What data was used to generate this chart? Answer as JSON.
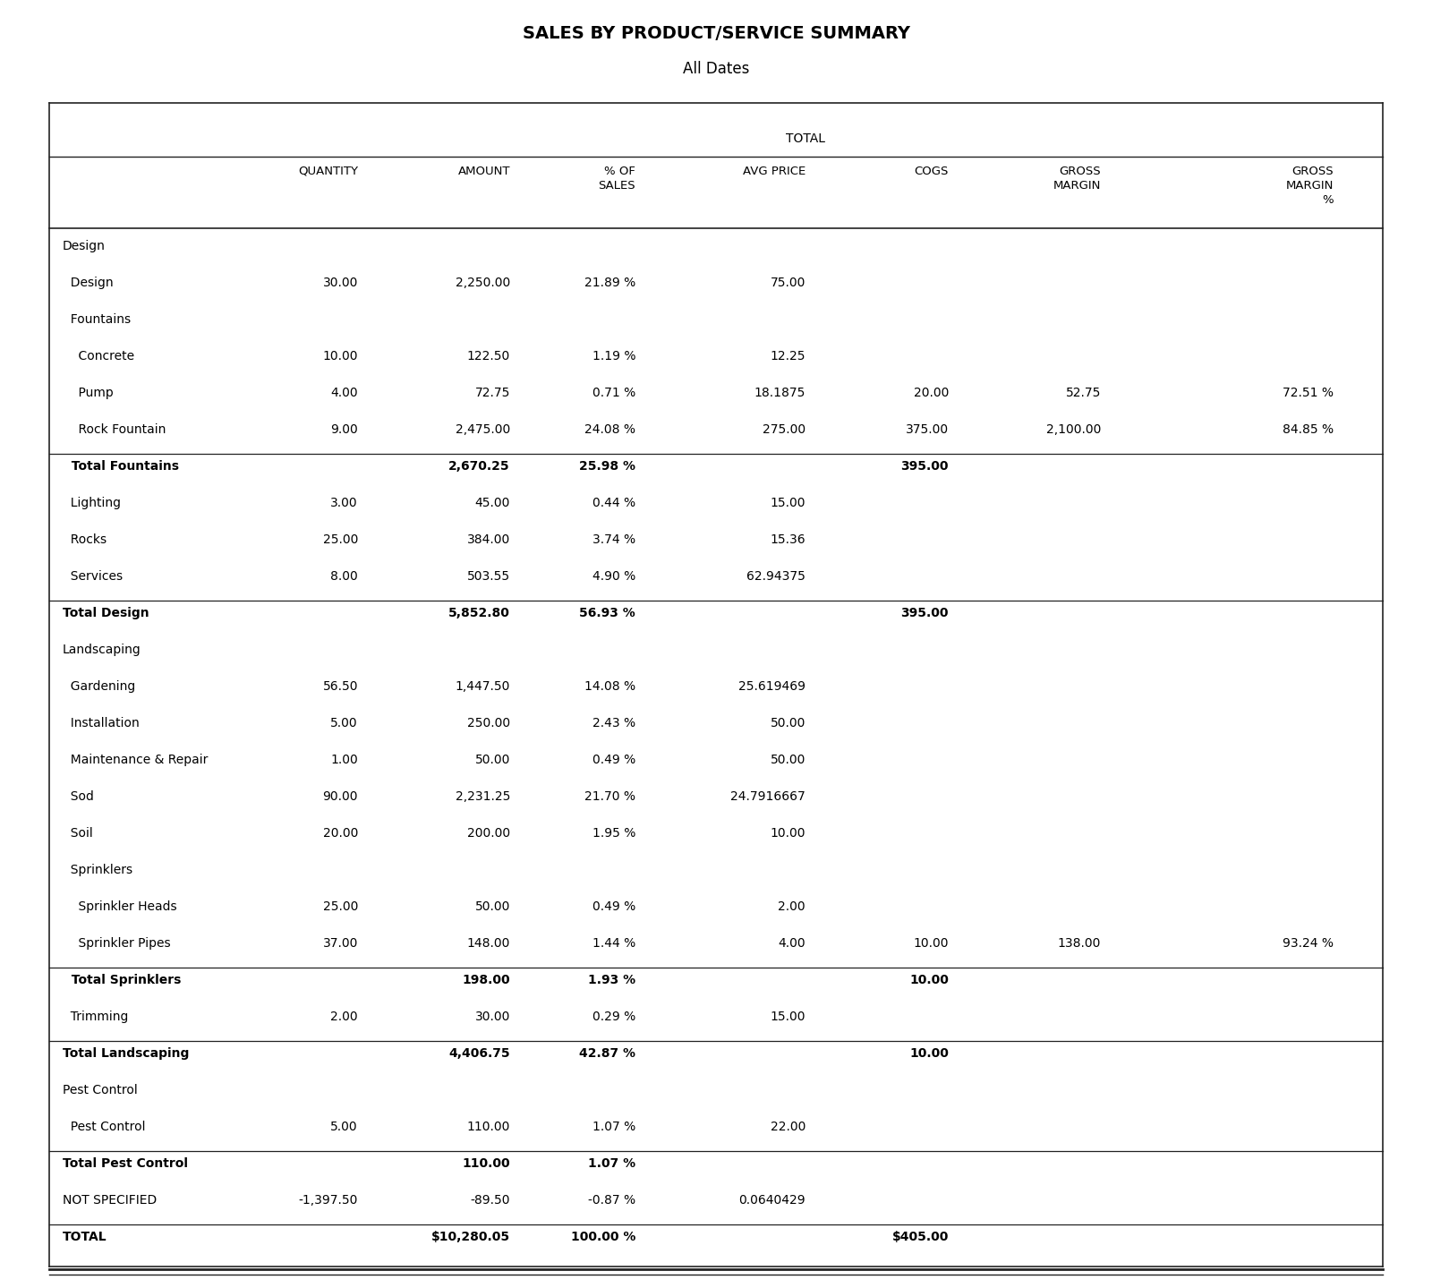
{
  "title": "SALES BY PRODUCT/SERVICE SUMMARY",
  "subtitle": "All Dates",
  "total_label": "TOTAL",
  "col_headers": [
    "",
    "QUANTITY",
    "AMOUNT",
    "% OF\nSALES",
    "AVG PRICE",
    "COGS",
    "GROSS\nMARGIN",
    "GROSS\nMARGIN\n%"
  ],
  "rows": [
    {
      "label": "Design",
      "indent": 0,
      "bold": false,
      "is_category": true,
      "qty": "",
      "amount": "",
      "pct": "",
      "avg": "",
      "cogs": "",
      "gm": "",
      "gm_pct": "",
      "has_top_line": false
    },
    {
      "label": "  Design",
      "indent": 0,
      "bold": false,
      "is_category": false,
      "qty": "30.00",
      "amount": "2,250.00",
      "pct": "21.89 %",
      "avg": "75.00",
      "cogs": "",
      "gm": "",
      "gm_pct": "",
      "has_top_line": false
    },
    {
      "label": "  Fountains",
      "indent": 0,
      "bold": false,
      "is_category": true,
      "qty": "",
      "amount": "",
      "pct": "",
      "avg": "",
      "cogs": "",
      "gm": "",
      "gm_pct": "",
      "has_top_line": false
    },
    {
      "label": "    Concrete",
      "indent": 0,
      "bold": false,
      "is_category": false,
      "qty": "10.00",
      "amount": "122.50",
      "pct": "1.19 %",
      "avg": "12.25",
      "cogs": "",
      "gm": "",
      "gm_pct": "",
      "has_top_line": false
    },
    {
      "label": "    Pump",
      "indent": 0,
      "bold": false,
      "is_category": false,
      "qty": "4.00",
      "amount": "72.75",
      "pct": "0.71 %",
      "avg": "18.1875",
      "cogs": "20.00",
      "gm": "52.75",
      "gm_pct": "72.51 %",
      "has_top_line": false
    },
    {
      "label": "    Rock Fountain",
      "indent": 0,
      "bold": false,
      "is_category": false,
      "qty": "9.00",
      "amount": "2,475.00",
      "pct": "24.08 %",
      "avg": "275.00",
      "cogs": "375.00",
      "gm": "2,100.00",
      "gm_pct": "84.85 %",
      "has_top_line": false
    },
    {
      "label": "  Total Fountains",
      "indent": 0,
      "bold": true,
      "is_category": false,
      "qty": "",
      "amount": "2,670.25",
      "pct": "25.98 %",
      "avg": "",
      "cogs": "395.00",
      "gm": "",
      "gm_pct": "",
      "has_top_line": true
    },
    {
      "label": "  Lighting",
      "indent": 0,
      "bold": false,
      "is_category": false,
      "qty": "3.00",
      "amount": "45.00",
      "pct": "0.44 %",
      "avg": "15.00",
      "cogs": "",
      "gm": "",
      "gm_pct": "",
      "has_top_line": false
    },
    {
      "label": "  Rocks",
      "indent": 0,
      "bold": false,
      "is_category": false,
      "qty": "25.00",
      "amount": "384.00",
      "pct": "3.74 %",
      "avg": "15.36",
      "cogs": "",
      "gm": "",
      "gm_pct": "",
      "has_top_line": false
    },
    {
      "label": "  Services",
      "indent": 0,
      "bold": false,
      "is_category": false,
      "qty": "8.00",
      "amount": "503.55",
      "pct": "4.90 %",
      "avg": "62.94375",
      "cogs": "",
      "gm": "",
      "gm_pct": "",
      "has_top_line": false
    },
    {
      "label": "Total Design",
      "indent": 0,
      "bold": true,
      "is_category": false,
      "qty": "",
      "amount": "5,852.80",
      "pct": "56.93 %",
      "avg": "",
      "cogs": "395.00",
      "gm": "",
      "gm_pct": "",
      "has_top_line": true
    },
    {
      "label": "Landscaping",
      "indent": 0,
      "bold": false,
      "is_category": true,
      "qty": "",
      "amount": "",
      "pct": "",
      "avg": "",
      "cogs": "",
      "gm": "",
      "gm_pct": "",
      "has_top_line": false
    },
    {
      "label": "  Gardening",
      "indent": 0,
      "bold": false,
      "is_category": false,
      "qty": "56.50",
      "amount": "1,447.50",
      "pct": "14.08 %",
      "avg": "25.619469",
      "cogs": "",
      "gm": "",
      "gm_pct": "",
      "has_top_line": false
    },
    {
      "label": "  Installation",
      "indent": 0,
      "bold": false,
      "is_category": false,
      "qty": "5.00",
      "amount": "250.00",
      "pct": "2.43 %",
      "avg": "50.00",
      "cogs": "",
      "gm": "",
      "gm_pct": "",
      "has_top_line": false
    },
    {
      "label": "  Maintenance & Repair",
      "indent": 0,
      "bold": false,
      "is_category": false,
      "qty": "1.00",
      "amount": "50.00",
      "pct": "0.49 %",
      "avg": "50.00",
      "cogs": "",
      "gm": "",
      "gm_pct": "",
      "has_top_line": false
    },
    {
      "label": "  Sod",
      "indent": 0,
      "bold": false,
      "is_category": false,
      "qty": "90.00",
      "amount": "2,231.25",
      "pct": "21.70 %",
      "avg": "24.7916667",
      "cogs": "",
      "gm": "",
      "gm_pct": "",
      "has_top_line": false
    },
    {
      "label": "  Soil",
      "indent": 0,
      "bold": false,
      "is_category": false,
      "qty": "20.00",
      "amount": "200.00",
      "pct": "1.95 %",
      "avg": "10.00",
      "cogs": "",
      "gm": "",
      "gm_pct": "",
      "has_top_line": false
    },
    {
      "label": "  Sprinklers",
      "indent": 0,
      "bold": false,
      "is_category": true,
      "qty": "",
      "amount": "",
      "pct": "",
      "avg": "",
      "cogs": "",
      "gm": "",
      "gm_pct": "",
      "has_top_line": false
    },
    {
      "label": "    Sprinkler Heads",
      "indent": 0,
      "bold": false,
      "is_category": false,
      "qty": "25.00",
      "amount": "50.00",
      "pct": "0.49 %",
      "avg": "2.00",
      "cogs": "",
      "gm": "",
      "gm_pct": "",
      "has_top_line": false
    },
    {
      "label": "    Sprinkler Pipes",
      "indent": 0,
      "bold": false,
      "is_category": false,
      "qty": "37.00",
      "amount": "148.00",
      "pct": "1.44 %",
      "avg": "4.00",
      "cogs": "10.00",
      "gm": "138.00",
      "gm_pct": "93.24 %",
      "has_top_line": false
    },
    {
      "label": "  Total Sprinklers",
      "indent": 0,
      "bold": true,
      "is_category": false,
      "qty": "",
      "amount": "198.00",
      "pct": "1.93 %",
      "avg": "",
      "cogs": "10.00",
      "gm": "",
      "gm_pct": "",
      "has_top_line": true
    },
    {
      "label": "  Trimming",
      "indent": 0,
      "bold": false,
      "is_category": false,
      "qty": "2.00",
      "amount": "30.00",
      "pct": "0.29 %",
      "avg": "15.00",
      "cogs": "",
      "gm": "",
      "gm_pct": "",
      "has_top_line": false
    },
    {
      "label": "Total Landscaping",
      "indent": 0,
      "bold": true,
      "is_category": false,
      "qty": "",
      "amount": "4,406.75",
      "pct": "42.87 %",
      "avg": "",
      "cogs": "10.00",
      "gm": "",
      "gm_pct": "",
      "has_top_line": true
    },
    {
      "label": "Pest Control",
      "indent": 0,
      "bold": false,
      "is_category": true,
      "qty": "",
      "amount": "",
      "pct": "",
      "avg": "",
      "cogs": "",
      "gm": "",
      "gm_pct": "",
      "has_top_line": false
    },
    {
      "label": "  Pest Control",
      "indent": 0,
      "bold": false,
      "is_category": false,
      "qty": "5.00",
      "amount": "110.00",
      "pct": "1.07 %",
      "avg": "22.00",
      "cogs": "",
      "gm": "",
      "gm_pct": "",
      "has_top_line": false
    },
    {
      "label": "Total Pest Control",
      "indent": 0,
      "bold": true,
      "is_category": false,
      "qty": "",
      "amount": "110.00",
      "pct": "1.07 %",
      "avg": "",
      "cogs": "",
      "gm": "",
      "gm_pct": "",
      "has_top_line": true
    },
    {
      "label": "NOT SPECIFIED",
      "indent": 0,
      "bold": false,
      "is_category": false,
      "qty": "-1,397.50",
      "amount": "-89.50",
      "pct": "-0.87 %",
      "avg": "0.0640429",
      "cogs": "",
      "gm": "",
      "gm_pct": "",
      "has_top_line": false
    },
    {
      "label": "TOTAL",
      "indent": 0,
      "bold": true,
      "is_category": false,
      "qty": "",
      "amount": "$10,280.05",
      "pct": "100.00 %",
      "avg": "",
      "cogs": "$405.00",
      "gm": "",
      "gm_pct": "",
      "has_top_line": true,
      "is_total": true
    }
  ],
  "bg_color": "#ffffff",
  "text_color": "#000000",
  "line_color": "#444444",
  "border_color": "#222222"
}
